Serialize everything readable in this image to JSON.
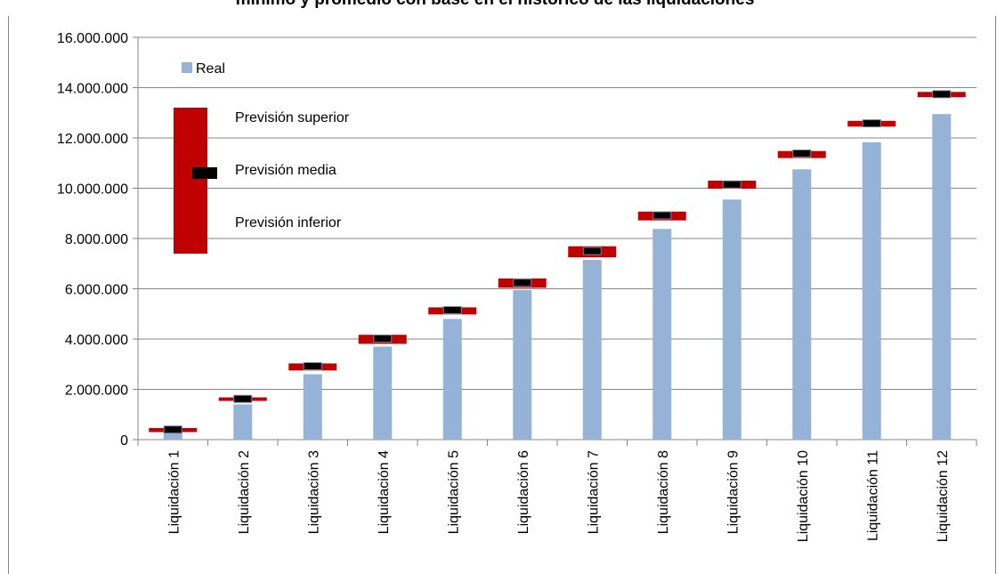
{
  "chart_data": {
    "type": "bar",
    "title": "mínimo y promedio con base en el histórico de las liquidaciones",
    "categories": [
      "Liquidación 1",
      "Liquidación 2",
      "Liquidación 3",
      "Liquidación 4",
      "Liquidación 5",
      "Liquidación 6",
      "Liquidación 7",
      "Liquidación 8",
      "Liquidación 9",
      "Liquidación 10",
      "Liquidación 11",
      "Liquidación 12"
    ],
    "series": [
      {
        "name": "Real",
        "values": [
          330000,
          1400000,
          2600000,
          3700000,
          4800000,
          5950000,
          7150000,
          8380000,
          9550000,
          10750000,
          11830000,
          12950000
        ]
      }
    ],
    "forecast": {
      "upper_label": "Previsión superior",
      "mid_label": "Previsión media",
      "lower_label": "Previsión inferior",
      "upper": [
        460000,
        1680000,
        3030000,
        4170000,
        5260000,
        6410000,
        7690000,
        9070000,
        10300000,
        11480000,
        12680000,
        13830000
      ],
      "mid": [
        400000,
        1620000,
        2920000,
        4020000,
        5150000,
        6240000,
        7500000,
        8920000,
        10150000,
        11380000,
        12580000,
        13740000
      ],
      "lower": [
        300000,
        1540000,
        2750000,
        3810000,
        4980000,
        6040000,
        7250000,
        8720000,
        9980000,
        11200000,
        12450000,
        13620000
      ]
    },
    "yticks": [
      "0",
      "2.000.000",
      "4.000.000",
      "6.000.000",
      "8.000.000",
      "10.000.000",
      "12.000.000",
      "14.000.000",
      "16.000.000"
    ],
    "ylim": [
      0,
      16000000
    ],
    "grid": true,
    "legend_position": "top-left",
    "colors": {
      "bar": "#95b3d7",
      "forecast_range": "#c00000",
      "forecast_mid": "#000000",
      "gridline": "#868686",
      "axis": "#868686"
    }
  }
}
